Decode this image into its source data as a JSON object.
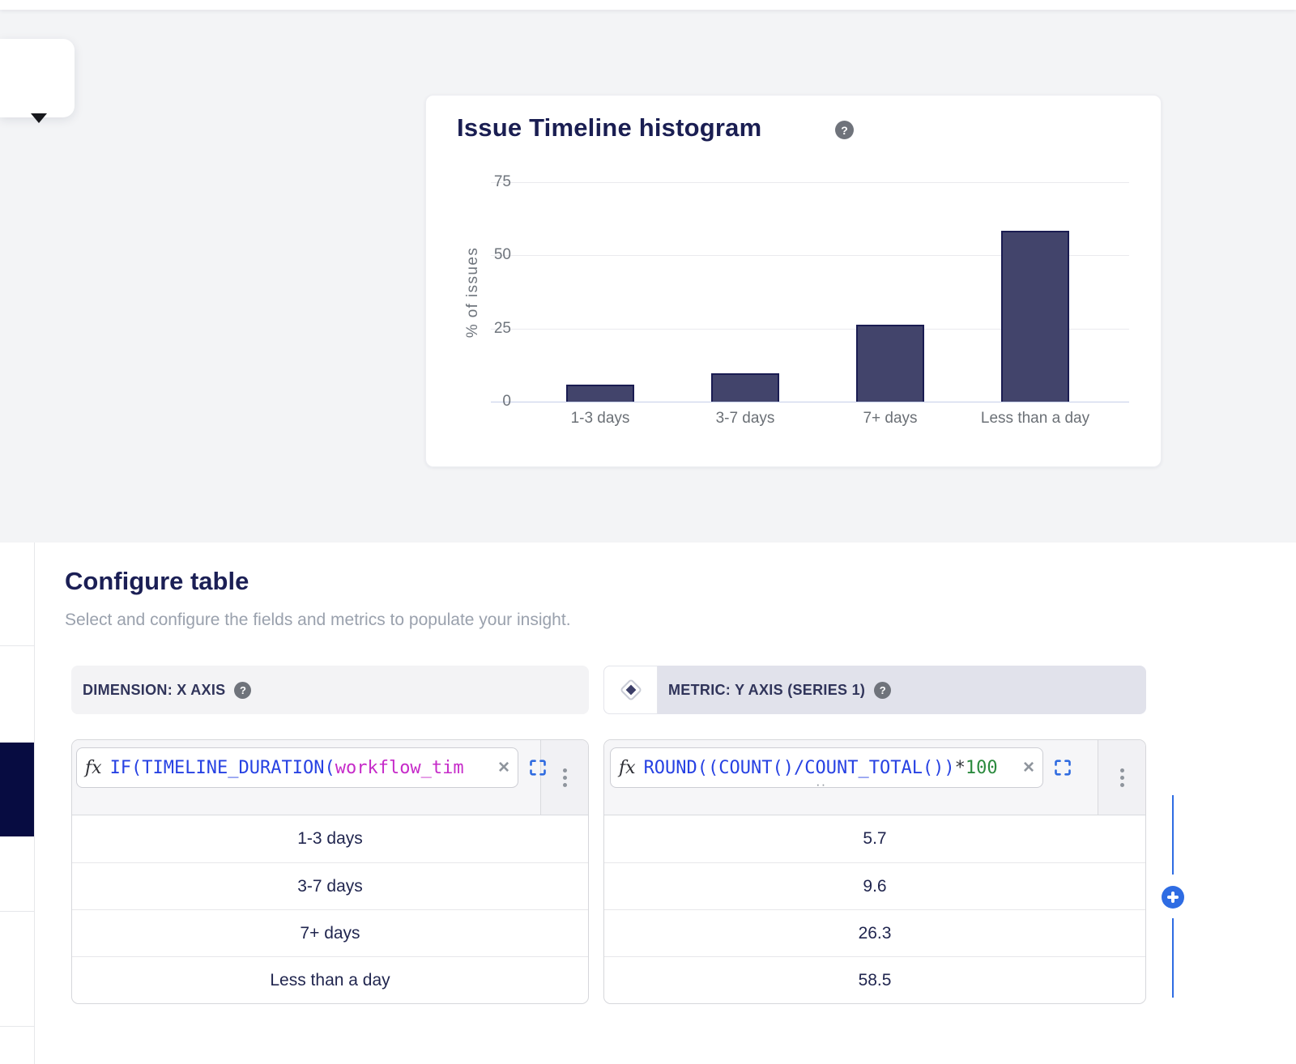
{
  "icons": {
    "caret": "chevron-down",
    "help": "?",
    "close": "×",
    "plus": "+",
    "kebab": "more-options-dots",
    "expand": "expand-corners",
    "diamond": "metric-diamond"
  },
  "colors": {
    "accent_blue": "#2e6ce3",
    "bar_fill": "#42446b",
    "bar_stroke": "#1a1c52",
    "heading_navy": "#1b1f55",
    "active_step_navy": "#070c41",
    "formula_blue": "#2742e3",
    "formula_magenta": "#c62bc9",
    "formula_green": "#2b8a3e",
    "metric_header_bg": "#e1e2eb",
    "dimension_header_bg": "#f3f3f5"
  },
  "chart_card": {
    "title": "Issue Timeline histogram"
  },
  "chart_data": {
    "type": "bar",
    "title": "Issue Timeline histogram",
    "categories": [
      "1-3 days",
      "3-7 days",
      "7+ days",
      "Less than a day"
    ],
    "values": [
      5.7,
      9.6,
      26.3,
      58.5
    ],
    "xlabel": "",
    "ylabel": "% of issues",
    "yticks": [
      0,
      25,
      50,
      75
    ],
    "ylim": [
      0,
      75
    ],
    "grid": true,
    "legend": false
  },
  "configure": {
    "title": "Configure table",
    "subtitle": "Select and configure the fields and metrics to populate your insight.",
    "dimension": {
      "header": "DIMENSION: X AXIS",
      "fx_label": "fx",
      "formula_segments": [
        {
          "text": "IF(TIMELINE_DURATION(",
          "color": "#2742e3"
        },
        {
          "text": "workflow_tim",
          "color": "#c62bc9"
        }
      ],
      "rows": [
        "1-3 days",
        "3-7 days",
        "7+ days",
        "Less than a day"
      ]
    },
    "metric": {
      "header": "METRIC: Y AXIS (SERIES 1)",
      "fx_label": "fx",
      "formula_segments": [
        {
          "text": "ROUND((COUNT()/COUNT_TOTAL())",
          "color": "#2742e3"
        },
        {
          "text": "*",
          "color": "#30343a"
        },
        {
          "text": "100",
          "color": "#2b8a3e"
        }
      ],
      "truncation_dots": "··",
      "rows": [
        "5.7",
        "9.6",
        "26.3",
        "58.5"
      ]
    }
  }
}
